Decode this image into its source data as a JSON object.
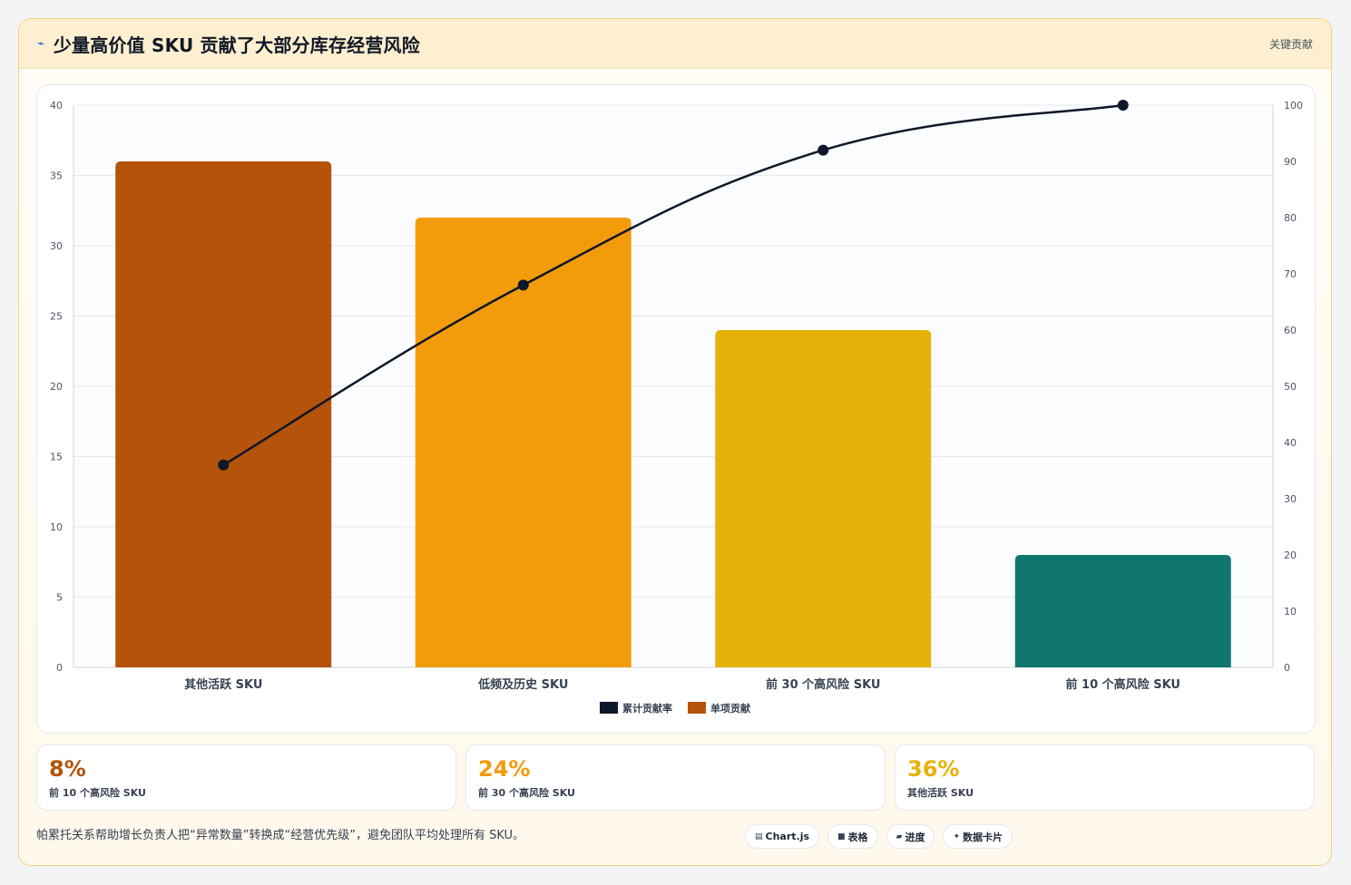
{
  "header": {
    "title": "少量高价值 SKU 贡献了大部分库存经营风险",
    "tag": "关键贡献"
  },
  "chart_data": {
    "type": "bar",
    "categories": [
      "其他活跃 SKU",
      "低频及历史 SKU",
      "前 30 个高风险 SKU",
      "前 10 个高风险 SKU"
    ],
    "series": [
      {
        "name": "单项贡献",
        "type": "bar",
        "axis": "left",
        "values": [
          36,
          32,
          24,
          8
        ],
        "colors": [
          "#b45309",
          "#f29c0c",
          "#e6b20a",
          "#0f766e"
        ]
      },
      {
        "name": "累计贡献率",
        "type": "line",
        "axis": "right",
        "values": [
          36,
          68,
          92,
          100
        ],
        "color": "#0f172a"
      }
    ],
    "ylim": [
      0,
      40
    ],
    "y2lim": [
      0,
      100
    ],
    "yticks": [
      0,
      5,
      10,
      15,
      20,
      25,
      30,
      35,
      40
    ],
    "y2ticks": [
      0,
      10,
      20,
      30,
      40,
      50,
      60,
      70,
      80,
      90,
      100
    ],
    "legend": [
      {
        "name": "累计贡献率",
        "color": "#0f172a"
      },
      {
        "name": "单项贡献",
        "color": "#b45309"
      }
    ],
    "legend_position": "bottom",
    "grid": true
  },
  "stats": [
    {
      "value": "8%",
      "label": "前 10 个高风险 SKU",
      "color": "#b45309"
    },
    {
      "value": "24%",
      "label": "前 30 个高风险 SKU",
      "color": "#f29c0c"
    },
    {
      "value": "36%",
      "label": "其他活跃 SKU",
      "color": "#e6b20a"
    }
  ],
  "footer": {
    "note": "帕累托关系帮助增长负责人把“异常数量”转换成“经营优先级”，避免团队平均处理所有 SKU。",
    "chips": [
      {
        "icon": "chart-icon",
        "glyph": "▤",
        "label": "Chart.js"
      },
      {
        "icon": "table-icon",
        "glyph": "■",
        "label": "表格"
      },
      {
        "icon": "progress-icon",
        "glyph": "▰",
        "label": "进度"
      },
      {
        "icon": "sparkle-icon",
        "glyph": "✦",
        "label": "数据卡片"
      }
    ]
  }
}
